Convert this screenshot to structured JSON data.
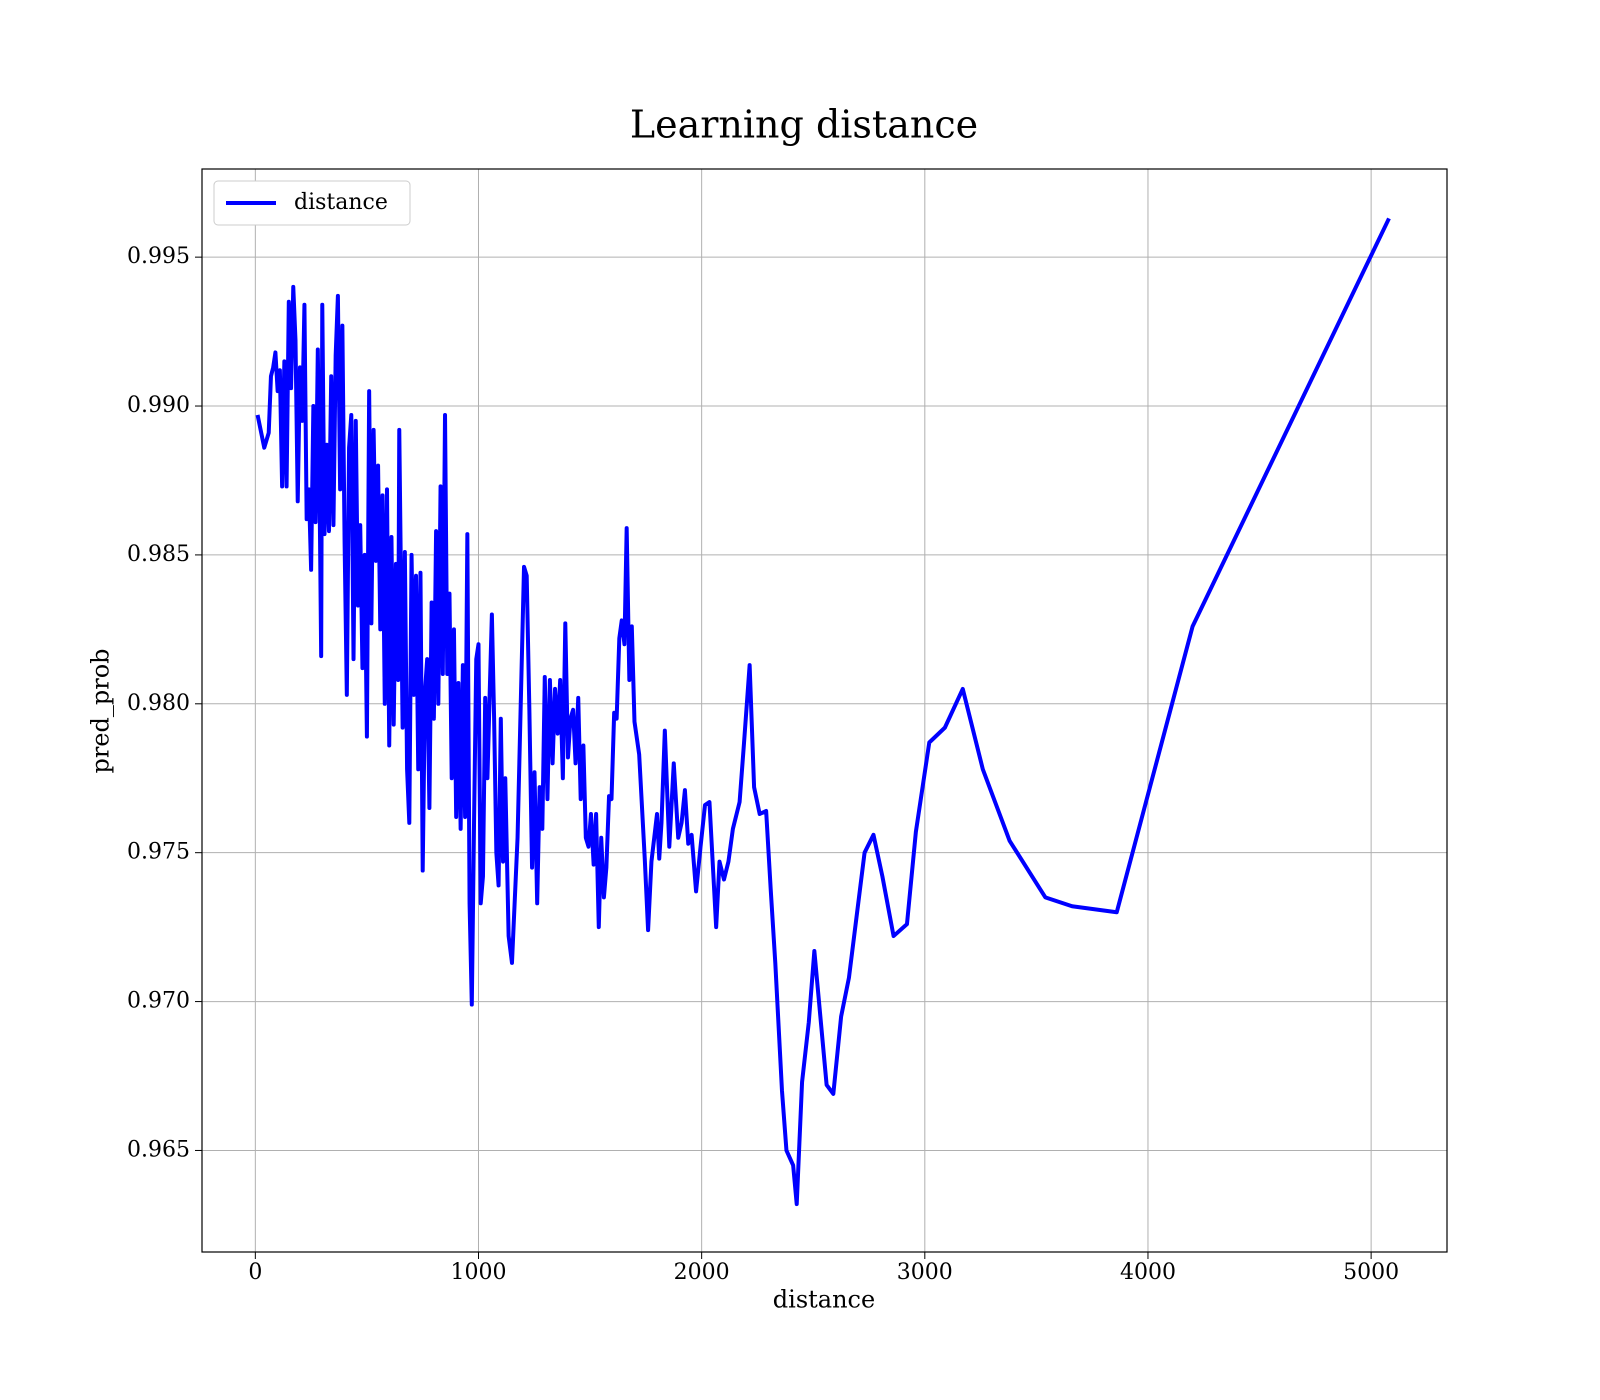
{
  "chart_data": {
    "type": "line",
    "title": "Learning distance",
    "xlabel": "distance",
    "ylabel": "pred_prob",
    "x": [
      10,
      40,
      60,
      70,
      80,
      90,
      100,
      110,
      120,
      130,
      140,
      150,
      160,
      170,
      180,
      190,
      200,
      210,
      220,
      230,
      240,
      250,
      260,
      270,
      280,
      290,
      295,
      300,
      310,
      320,
      330,
      340,
      350,
      360,
      370,
      380,
      390,
      400,
      410,
      420,
      430,
      440,
      450,
      460,
      470,
      480,
      490,
      500,
      510,
      520,
      530,
      540,
      550,
      560,
      570,
      580,
      590,
      600,
      610,
      620,
      630,
      640,
      645,
      660,
      670,
      680,
      690,
      700,
      710,
      720,
      730,
      740,
      750,
      760,
      770,
      780,
      790,
      800,
      810,
      820,
      830,
      840,
      850,
      860,
      870,
      880,
      890,
      900,
      910,
      920,
      930,
      940,
      950,
      960,
      970,
      980,
      990,
      1000,
      1010,
      1020,
      1030,
      1040,
      1050,
      1060,
      1070,
      1080,
      1090,
      1100,
      1110,
      1120,
      1135,
      1150,
      1175,
      1204,
      1216,
      1228,
      1240,
      1251,
      1263,
      1274,
      1286,
      1297,
      1309,
      1320,
      1332,
      1343,
      1355,
      1366,
      1378,
      1389,
      1401,
      1412,
      1424,
      1435,
      1447,
      1458,
      1470,
      1481,
      1493,
      1504,
      1516,
      1527,
      1539,
      1550,
      1562,
      1573,
      1585,
      1596,
      1608,
      1619,
      1631,
      1642,
      1654,
      1664,
      1676,
      1687,
      1699,
      1720,
      1745,
      1760,
      1775,
      1800,
      1810,
      1820,
      1835,
      1855,
      1875,
      1895,
      1910,
      1925,
      1940,
      1955,
      1975,
      1995,
      2015,
      2035,
      2065,
      2080,
      2100,
      2120,
      2140,
      2170,
      2190,
      2215,
      2235,
      2260,
      2289,
      2310,
      2330,
      2360,
      2380,
      2410,
      2426,
      2450,
      2480,
      2505,
      2560,
      2590,
      2625,
      2660,
      2730,
      2770,
      2810,
      2860,
      2920,
      2960,
      3020,
      3090,
      3170,
      3260,
      3380,
      3540,
      3660,
      3860,
      4200,
      5080
    ],
    "series": [
      {
        "name": "distance",
        "color": "#0000ff",
        "values": [
          0.9897,
          0.9886,
          0.9891,
          0.991,
          0.9913,
          0.9918,
          0.9905,
          0.9912,
          0.9873,
          0.9915,
          0.9873,
          0.9935,
          0.9906,
          0.994,
          0.9922,
          0.9868,
          0.9913,
          0.9895,
          0.9934,
          0.9862,
          0.9872,
          0.9845,
          0.99,
          0.9861,
          0.9919,
          0.9855,
          0.9816,
          0.9934,
          0.9857,
          0.9887,
          0.9858,
          0.991,
          0.986,
          0.9917,
          0.9937,
          0.9872,
          0.9927,
          0.9854,
          0.9803,
          0.9886,
          0.9897,
          0.9815,
          0.9895,
          0.9833,
          0.986,
          0.9812,
          0.985,
          0.9789,
          0.9905,
          0.9827,
          0.9892,
          0.9848,
          0.988,
          0.9825,
          0.987,
          0.98,
          0.9872,
          0.9786,
          0.9856,
          0.9793,
          0.9847,
          0.9808,
          0.9892,
          0.9792,
          0.9851,
          0.9778,
          0.976,
          0.985,
          0.9803,
          0.9843,
          0.9778,
          0.9844,
          0.9744,
          0.9804,
          0.9815,
          0.9765,
          0.9834,
          0.9795,
          0.9858,
          0.98,
          0.9873,
          0.981,
          0.9897,
          0.981,
          0.9837,
          0.9775,
          0.9825,
          0.9762,
          0.9807,
          0.9758,
          0.9813,
          0.9762,
          0.9857,
          0.9733,
          0.9699,
          0.976,
          0.9815,
          0.982,
          0.9733,
          0.9742,
          0.9802,
          0.9775,
          0.9803,
          0.983,
          0.9795,
          0.975,
          0.9739,
          0.9795,
          0.9747,
          0.9775,
          0.9722,
          0.9713,
          0.9755,
          0.9846,
          0.9843,
          0.9798,
          0.9745,
          0.9777,
          0.9733,
          0.9772,
          0.9758,
          0.9809,
          0.9768,
          0.9808,
          0.978,
          0.9805,
          0.979,
          0.9808,
          0.9775,
          0.9827,
          0.9782,
          0.9795,
          0.9798,
          0.978,
          0.9802,
          0.9768,
          0.9786,
          0.9755,
          0.9752,
          0.9763,
          0.9746,
          0.9763,
          0.9725,
          0.9755,
          0.9735,
          0.9745,
          0.9769,
          0.9768,
          0.9797,
          0.9795,
          0.9822,
          0.9828,
          0.982,
          0.9859,
          0.9808,
          0.9826,
          0.9794,
          0.9783,
          0.9748,
          0.9724,
          0.9747,
          0.9763,
          0.9748,
          0.976,
          0.9791,
          0.9752,
          0.978,
          0.9755,
          0.976,
          0.9771,
          0.9753,
          0.9756,
          0.9737,
          0.9752,
          0.9766,
          0.9767,
          0.9725,
          0.9747,
          0.9741,
          0.9747,
          0.9758,
          0.9767,
          0.9787,
          0.9813,
          0.9772,
          0.9763,
          0.9764,
          0.9737,
          0.9713,
          0.967,
          0.965,
          0.9645,
          0.9632,
          0.9673,
          0.9693,
          0.9717,
          0.9672,
          0.9669,
          0.9695,
          0.9708,
          0.975,
          0.9756,
          0.9742,
          0.9722,
          0.9726,
          0.9757,
          0.9787,
          0.9792,
          0.9805,
          0.9778,
          0.9754,
          0.9735,
          0.9732,
          0.973,
          0.9826,
          0.9963
        ]
      }
    ],
    "xlim": [
      -239,
      5340
    ],
    "xticks": [
      0,
      1000,
      2000,
      3000,
      4000,
      5000
    ],
    "ylim": [
      0.96159,
      0.99796
    ],
    "yticks": [
      0.965,
      {
        "value": 0.97,
        "label": "0.970"
      },
      0.975,
      {
        "value": 0.98,
        "label": "0.980"
      },
      0.985,
      {
        "value": 0.99,
        "label": "0.990"
      },
      0.995
    ],
    "grid": true,
    "legend": "upper left"
  }
}
